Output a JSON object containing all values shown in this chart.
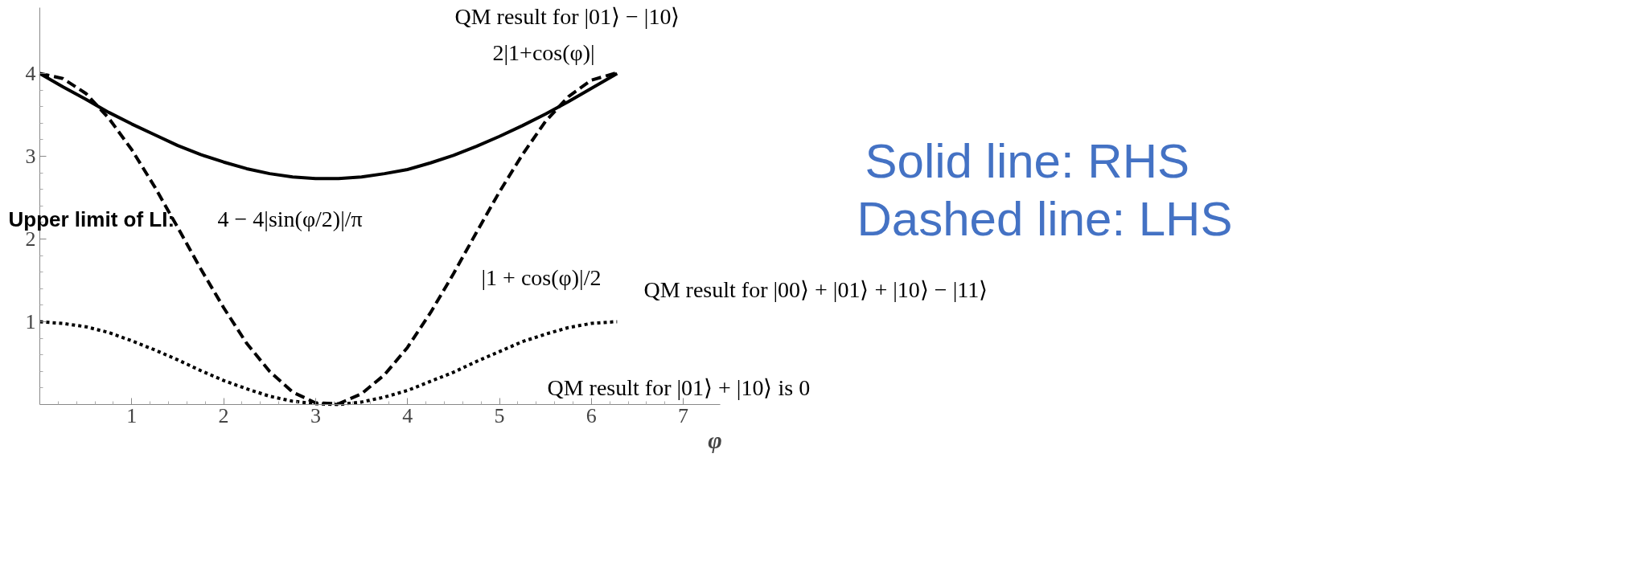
{
  "chart_data": {
    "type": "line",
    "xlabel": "φ",
    "x": [
      0,
      0.25,
      0.5,
      0.75,
      1,
      1.25,
      1.5,
      1.75,
      2,
      2.25,
      2.5,
      2.75,
      3,
      3.25,
      3.5,
      3.75,
      4,
      4.25,
      4.5,
      4.75,
      5,
      5.25,
      5.5,
      5.75,
      6,
      6.25,
      6.28
    ],
    "series": [
      {
        "color": "#000000",
        "line_style": "solid",
        "values": [
          4,
          3.84,
          3.69,
          3.53,
          3.39,
          3.26,
          3.13,
          3.02,
          2.93,
          2.85,
          2.79,
          2.75,
          2.73,
          2.73,
          2.75,
          2.79,
          2.84,
          2.92,
          3.01,
          3.12,
          3.24,
          3.37,
          3.51,
          3.66,
          3.82,
          3.98,
          4
        ]
      },
      {
        "color": "#000000",
        "line_style": "dashed",
        "values": [
          4,
          3.94,
          3.76,
          3.46,
          3.08,
          2.63,
          2.14,
          1.64,
          1.17,
          0.74,
          0.4,
          0.15,
          0.02,
          0.01,
          0.13,
          0.36,
          0.69,
          1.11,
          1.58,
          2.08,
          2.57,
          3.02,
          3.42,
          3.72,
          3.92,
          4,
          4
        ]
      },
      {
        "color": "#000000",
        "line_style": "dotted",
        "values": [
          1,
          0.98,
          0.94,
          0.87,
          0.77,
          0.66,
          0.54,
          0.41,
          0.29,
          0.19,
          0.1,
          0.04,
          0.01,
          0,
          0.03,
          0.09,
          0.17,
          0.28,
          0.39,
          0.52,
          0.64,
          0.76,
          0.85,
          0.93,
          0.98,
          1,
          1
        ]
      }
    ],
    "xlim": [
      0,
      7.4
    ],
    "ylim": [
      0,
      4.8
    ],
    "xticks": [
      1,
      2,
      3,
      4,
      5,
      6,
      7
    ],
    "yticks": [
      1,
      2,
      3,
      4
    ],
    "marker": "none",
    "annotations": [
      "QM result for |01⟩ − |10⟩",
      "2|1+cos(φ)|",
      "Upper limit of LI:",
      "4 − 4|sin(φ/2)|/π",
      "|1 + cos(φ)|/2",
      "QM result for |01⟩ + |10⟩ is 0",
      "QM result for |00⟩ + |01⟩ + |10⟩ − |11⟩",
      "Solid line: RHS",
      "Dashed line: LHS"
    ]
  }
}
